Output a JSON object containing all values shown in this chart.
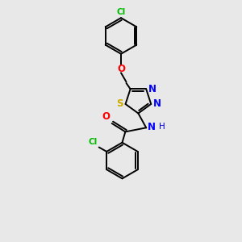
{
  "background_color": "#e8e8e8",
  "bond_color": "#000000",
  "atom_colors": {
    "Cl_top": "#00bb00",
    "O": "#ff0000",
    "N": "#0000ff",
    "S": "#ccaa00",
    "Cl_bottom": "#00bb00",
    "H": "#0000cc"
  },
  "figsize": [
    3.0,
    3.0
  ],
  "dpi": 100,
  "lw": 1.4,
  "font_size": 7.5
}
